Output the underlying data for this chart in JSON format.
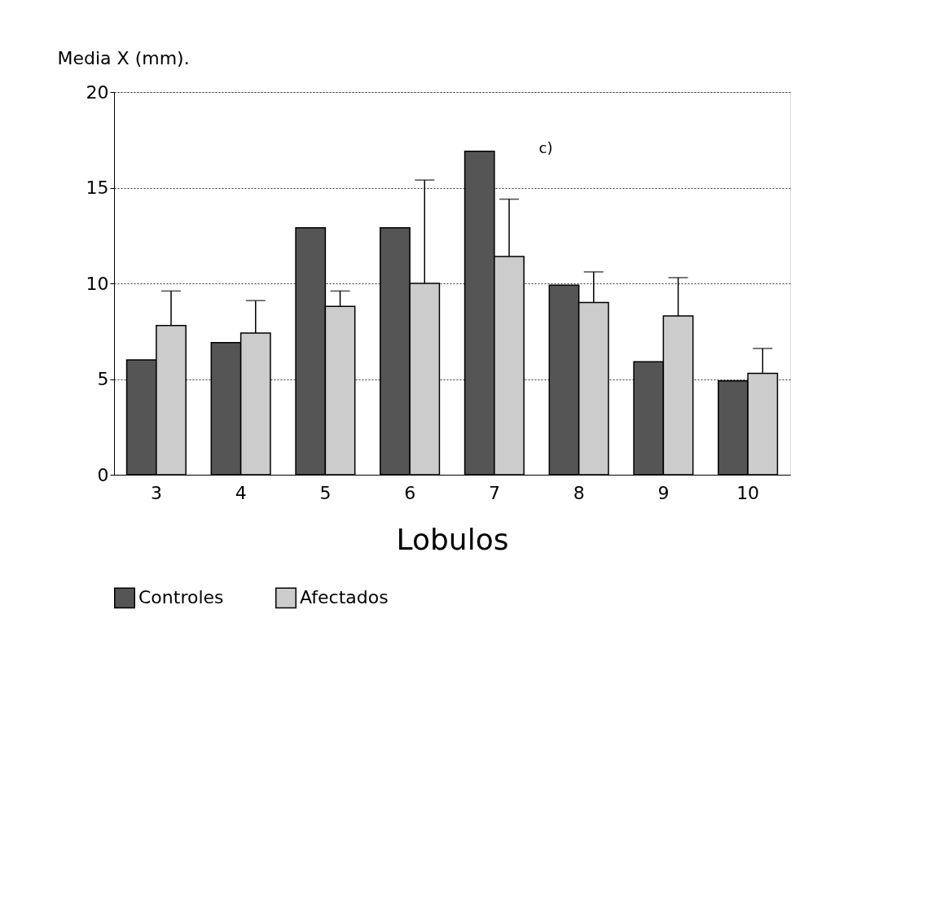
{
  "chart_data": {
    "type": "bar",
    "ylabel": "Media X (mm).",
    "xlabel": "Lobulos",
    "categories": [
      "3",
      "4",
      "5",
      "6",
      "7",
      "8",
      "9",
      "10"
    ],
    "series": [
      {
        "name": "Controles",
        "color": "#555555",
        "values": [
          6.0,
          6.9,
          12.9,
          12.9,
          16.9,
          9.9,
          5.9,
          4.9
        ]
      },
      {
        "name": "Afectados",
        "color": "#cccccc",
        "values": [
          7.8,
          7.4,
          8.8,
          10.0,
          11.4,
          9.0,
          8.3,
          5.3
        ],
        "errors": [
          [
            7.8,
            9.6
          ],
          [
            7.4,
            9.1
          ],
          [
            8.8,
            9.6
          ],
          [
            10.0,
            15.4
          ],
          [
            11.4,
            14.4
          ],
          [
            9.0,
            10.6
          ],
          [
            8.3,
            10.3
          ],
          [
            5.3,
            6.6
          ]
        ]
      }
    ],
    "ylim": [
      0,
      20
    ],
    "yticks": [
      0,
      5,
      10,
      15,
      20
    ],
    "grid": "y",
    "legend": "bottom",
    "annotations": [
      "c)"
    ]
  }
}
